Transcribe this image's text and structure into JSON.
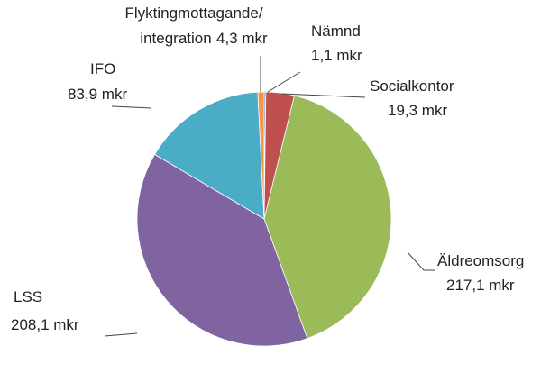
{
  "chart_data": {
    "type": "pie",
    "categories": [
      "Nämnd",
      "Socialkontor",
      "Äldreomsorg",
      "LSS",
      "IFO",
      "Flyktingmottagande/integration"
    ],
    "values": [
      1.1,
      19.3,
      217.1,
      208.1,
      83.9,
      4.3
    ],
    "value_labels": [
      "1,1 mkr",
      "19,3 mkr",
      "217,1 mkr",
      "208,1 mkr",
      "83,9 mkr",
      "4,3 mkr"
    ],
    "colors": [
      "#4a7ebb",
      "#c0504d",
      "#9bbb59",
      "#8064a2",
      "#4bacc6",
      "#f79646"
    ]
  }
}
